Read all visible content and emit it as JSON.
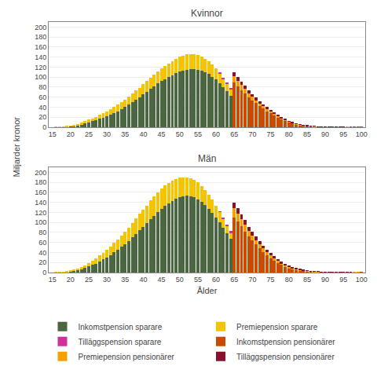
{
  "chart_data": [
    {
      "type": "bar",
      "title": "Kvinnor",
      "ylabel": "Miljarder kronor",
      "stacked": true,
      "grid": true,
      "legend": "bottom",
      "xlim": [
        14,
        101
      ],
      "xticks": [
        15,
        20,
        25,
        30,
        35,
        40,
        45,
        50,
        55,
        60,
        65,
        70,
        75,
        80,
        85,
        90,
        95,
        100
      ],
      "ylim": [
        0,
        210
      ],
      "yticks": [
        0,
        20,
        40,
        60,
        80,
        100,
        120,
        140,
        160,
        180,
        200
      ],
      "series": [
        {
          "name": "Inkomstpension sparare",
          "color": "#4a6741",
          "x": [
            16,
            17,
            18,
            19,
            20,
            21,
            22,
            23,
            24,
            25,
            26,
            27,
            28,
            29,
            30,
            31,
            32,
            33,
            34,
            35,
            36,
            37,
            38,
            39,
            40,
            41,
            42,
            43,
            44,
            45,
            46,
            47,
            48,
            49,
            50,
            51,
            52,
            53,
            54,
            55,
            56,
            57,
            58,
            59,
            60,
            61,
            62,
            63,
            64
          ],
          "values": [
            0.3,
            0.5,
            0.8,
            1.2,
            2,
            3,
            4,
            6,
            8,
            10,
            12,
            14,
            17,
            19,
            22,
            25,
            28,
            32,
            36,
            40,
            45,
            50,
            55,
            60,
            66,
            71,
            77,
            82,
            87,
            92,
            96,
            100,
            104,
            108,
            111,
            113,
            115,
            116,
            116,
            115,
            113,
            110,
            106,
            101,
            95,
            88,
            80,
            72,
            63
          ]
        },
        {
          "name": "Premiepension sparare",
          "color": "#f5c400",
          "x": [
            16,
            17,
            18,
            19,
            20,
            21,
            22,
            23,
            24,
            25,
            26,
            27,
            28,
            29,
            30,
            31,
            32,
            33,
            34,
            35,
            36,
            37,
            38,
            39,
            40,
            41,
            42,
            43,
            44,
            45,
            46,
            47,
            48,
            49,
            50,
            51,
            52,
            53,
            54,
            55,
            56,
            57,
            58,
            59,
            60,
            61,
            62,
            63,
            64
          ],
          "values": [
            0.1,
            0.2,
            0.3,
            0.5,
            0.8,
            1.2,
            2,
            3,
            4,
            5,
            6,
            7,
            8,
            9,
            10,
            11,
            12,
            13,
            14,
            15,
            16,
            17,
            18,
            19,
            20,
            21,
            22,
            23,
            24,
            25,
            26,
            27,
            28,
            29,
            30,
            30,
            30,
            30,
            30,
            29,
            28,
            27,
            26,
            24,
            22,
            20,
            17,
            15,
            13
          ]
        },
        {
          "name": "Tilläggspension sparare",
          "color": "#cc3399",
          "x": [
            16,
            17,
            18,
            19,
            20,
            21,
            22,
            23,
            24,
            25,
            26,
            27,
            28,
            29,
            30,
            31,
            32,
            33,
            34,
            35,
            36,
            37,
            38,
            39,
            40,
            41,
            42,
            43,
            44,
            45,
            46,
            47,
            48,
            49,
            50,
            51,
            52,
            53,
            54,
            55,
            56,
            57,
            58,
            59,
            60,
            61,
            62,
            63,
            64
          ],
          "values": [
            0,
            0,
            0,
            0,
            0,
            0,
            0,
            0,
            0,
            0,
            0,
            0,
            0,
            0,
            0,
            0,
            0,
            0,
            0,
            0,
            0,
            0,
            0,
            0,
            0,
            0,
            0,
            0,
            0,
            0,
            0,
            0,
            0,
            0,
            0,
            0,
            0,
            0,
            0,
            0,
            0,
            0,
            0,
            0,
            0,
            0.5,
            1,
            1.5,
            2
          ]
        },
        {
          "name": "Inkomstpension pensionärer",
          "color": "#c84b00",
          "x": [
            65,
            66,
            67,
            68,
            69,
            70,
            71,
            72,
            73,
            74,
            75,
            76,
            77,
            78,
            79,
            80,
            81,
            82,
            83,
            84,
            85,
            86,
            87,
            88,
            89,
            90,
            91,
            92,
            93,
            94,
            95,
            96,
            97,
            98,
            99,
            100
          ],
          "values": [
            90,
            82,
            74,
            67,
            60,
            54,
            48,
            42,
            37,
            32,
            28,
            24,
            20,
            16,
            13,
            10,
            8,
            6,
            4.5,
            3.5,
            2.5,
            2,
            1.5,
            1,
            0.8,
            0.5,
            0.3,
            0.2,
            0.15,
            0.1,
            0.08,
            0.05,
            0.04,
            0.02,
            0.01,
            0.01
          ]
        },
        {
          "name": "Premiepension pensionärer",
          "color": "#f5a000",
          "x": [
            65,
            66,
            67,
            68,
            69,
            70,
            71,
            72,
            73,
            74,
            75,
            76,
            77,
            78,
            79,
            80,
            81,
            82,
            83,
            84,
            85,
            86,
            87,
            88,
            89,
            90,
            91,
            92,
            93,
            94,
            95,
            96,
            97,
            98,
            99,
            100
          ],
          "values": [
            12,
            11,
            10,
            9,
            8,
            7,
            6,
            5.5,
            5,
            4.5,
            4,
            3.5,
            3,
            2.5,
            2,
            1.5,
            1.2,
            1,
            0.8,
            0.6,
            0.5,
            0.4,
            0.3,
            0.2,
            0.15,
            0.1,
            0.07,
            0.05,
            0.04,
            0.03,
            0.02,
            0.01,
            0.01,
            0,
            0,
            0
          ]
        },
        {
          "name": "Tilläggspension pensionärer",
          "color": "#8b1030",
          "x": [
            65,
            66,
            67,
            68,
            69,
            70,
            71,
            72,
            73,
            74,
            75,
            76,
            77,
            78,
            79,
            80,
            81,
            82,
            83,
            84,
            85,
            86,
            87,
            88,
            89,
            90,
            91,
            92,
            93,
            94,
            95,
            96,
            97,
            98,
            99,
            100
          ],
          "values": [
            8,
            7.5,
            7,
            6.5,
            6,
            5.5,
            5,
            4.5,
            4,
            3.5,
            3,
            2.5,
            2,
            1.5,
            1.2,
            1,
            0.8,
            0.6,
            0.5,
            0.4,
            0.3,
            0.25,
            0.2,
            0.15,
            0.1,
            0.08,
            0.06,
            0.04,
            0.03,
            0.02,
            0.01,
            0.01,
            0,
            0,
            0,
            0
          ]
        }
      ]
    },
    {
      "type": "bar",
      "title": "Män",
      "xlabel": "Ålder",
      "stacked": true,
      "grid": true,
      "xlim": [
        14,
        101
      ],
      "xticks": [
        15,
        20,
        25,
        30,
        35,
        40,
        45,
        50,
        55,
        60,
        65,
        70,
        75,
        80,
        85,
        90,
        95,
        100
      ],
      "ylim": [
        0,
        210
      ],
      "yticks": [
        0,
        20,
        40,
        60,
        80,
        100,
        120,
        140,
        160,
        180,
        200
      ],
      "series": [
        {
          "name": "Inkomstpension sparare",
          "color": "#4a6741",
          "x": [
            16,
            17,
            18,
            19,
            20,
            21,
            22,
            23,
            24,
            25,
            26,
            27,
            28,
            29,
            30,
            31,
            32,
            33,
            34,
            35,
            36,
            37,
            38,
            39,
            40,
            41,
            42,
            43,
            44,
            45,
            46,
            47,
            48,
            49,
            50,
            51,
            52,
            53,
            54,
            55,
            56,
            57,
            58,
            59,
            60,
            61,
            62,
            63,
            64
          ],
          "values": [
            0.4,
            0.7,
            1,
            1.5,
            2.5,
            3.5,
            5,
            7,
            9.5,
            12,
            15,
            18,
            22,
            26,
            30,
            35,
            40,
            45,
            51,
            57,
            63,
            70,
            77,
            84,
            91,
            98,
            106,
            113,
            120,
            127,
            133,
            138,
            143,
            147,
            150,
            152,
            153,
            152,
            150,
            146,
            141,
            135,
            127,
            119,
            110,
            100,
            89,
            78,
            67
          ]
        },
        {
          "name": "Premiepension sparare",
          "color": "#f5c400",
          "x": [
            16,
            17,
            18,
            19,
            20,
            21,
            22,
            23,
            24,
            25,
            26,
            27,
            28,
            29,
            30,
            31,
            32,
            33,
            34,
            35,
            36,
            37,
            38,
            39,
            40,
            41,
            42,
            43,
            44,
            45,
            46,
            47,
            48,
            49,
            50,
            51,
            52,
            53,
            54,
            55,
            56,
            57,
            58,
            59,
            60,
            61,
            62,
            63,
            64
          ],
          "values": [
            0.1,
            0.2,
            0.4,
            0.6,
            1,
            1.5,
            2.5,
            3.5,
            5,
            6.5,
            8,
            10,
            12,
            13.5,
            15,
            17,
            19,
            21,
            23,
            25,
            27,
            29,
            31,
            33,
            35,
            36,
            38,
            39,
            40,
            41,
            41,
            41,
            41,
            40,
            39,
            38,
            37,
            36,
            35,
            34,
            32,
            30,
            28,
            26,
            23,
            21,
            18,
            15,
            12
          ]
        },
        {
          "name": "Tilläggspension sparare",
          "color": "#cc3399",
          "x": [
            16,
            17,
            18,
            19,
            20,
            21,
            22,
            23,
            24,
            25,
            26,
            27,
            28,
            29,
            30,
            31,
            32,
            33,
            34,
            35,
            36,
            37,
            38,
            39,
            40,
            41,
            42,
            43,
            44,
            45,
            46,
            47,
            48,
            49,
            50,
            51,
            52,
            53,
            54,
            55,
            56,
            57,
            58,
            59,
            60,
            61,
            62,
            63,
            64
          ],
          "values": [
            0,
            0,
            0,
            0,
            0,
            0,
            0,
            0,
            0,
            0,
            0,
            0,
            0,
            0,
            0,
            0,
            0,
            0,
            0,
            0,
            0,
            0,
            0,
            0,
            0,
            0,
            0,
            0,
            0,
            0,
            0,
            0,
            0,
            0,
            0,
            0,
            0,
            0,
            0,
            0,
            0,
            0,
            0,
            0,
            0,
            0.5,
            1.5,
            2.5,
            4
          ]
        },
        {
          "name": "Inkomstpension pensionärer",
          "color": "#c84b00",
          "x": [
            65,
            66,
            67,
            68,
            69,
            70,
            71,
            72,
            73,
            74,
            75,
            76,
            77,
            78,
            79,
            80,
            81,
            82,
            83,
            84,
            85,
            86,
            87,
            88,
            89,
            90,
            91,
            92,
            93,
            94,
            95,
            96,
            97,
            98,
            99,
            100
          ],
          "values": [
            110,
            102,
            92,
            82,
            72,
            64,
            56,
            48,
            41,
            35,
            29,
            24,
            19,
            15,
            12,
            9,
            7,
            5.5,
            4.5,
            3.5,
            2.5,
            2,
            1.5,
            1.2,
            0.9,
            0.7,
            0.5,
            0.35,
            0.25,
            0.18,
            0.12,
            0.08,
            0.05,
            0.03,
            0.02,
            0.01
          ]
        },
        {
          "name": "Premiepension pensionärer",
          "color": "#f5a000",
          "x": [
            65,
            66,
            67,
            68,
            69,
            70,
            71,
            72,
            73,
            74,
            75,
            76,
            77,
            78,
            79,
            80,
            81,
            82,
            83,
            84,
            85,
            86,
            87,
            88,
            89,
            90,
            91,
            92,
            93,
            94,
            95,
            96,
            97,
            98,
            99,
            100
          ],
          "values": [
            18,
            16,
            14,
            13,
            11,
            10,
            9,
            8,
            7,
            6,
            5,
            4.5,
            4,
            3.5,
            3,
            2.5,
            2,
            1.5,
            1.2,
            1,
            0.8,
            0.6,
            0.5,
            0.4,
            0.3,
            0.2,
            0.15,
            0.1,
            0.08,
            0.05,
            0.04,
            0.03,
            0.02,
            0.01,
            0.01,
            0
          ]
        },
        {
          "name": "Tilläggspension pensionärer",
          "color": "#8b1030",
          "x": [
            65,
            66,
            67,
            68,
            69,
            70,
            71,
            72,
            73,
            74,
            75,
            76,
            77,
            78,
            79,
            80,
            81,
            82,
            83,
            84,
            85,
            86,
            87,
            88,
            89,
            90,
            91,
            92,
            93,
            94,
            95,
            96,
            97,
            98,
            99,
            100
          ],
          "values": [
            12,
            11,
            10,
            9.5,
            8.5,
            7.5,
            6.5,
            6,
            5.5,
            5,
            4.5,
            4,
            3.5,
            3,
            2.5,
            2,
            1.5,
            1.2,
            1,
            0.8,
            0.6,
            0.5,
            0.4,
            0.3,
            0.2,
            0.15,
            0.1,
            0.08,
            0.06,
            0.04,
            0.03,
            0.02,
            0.01,
            0,
            0,
            0
          ]
        }
      ]
    }
  ]
}
